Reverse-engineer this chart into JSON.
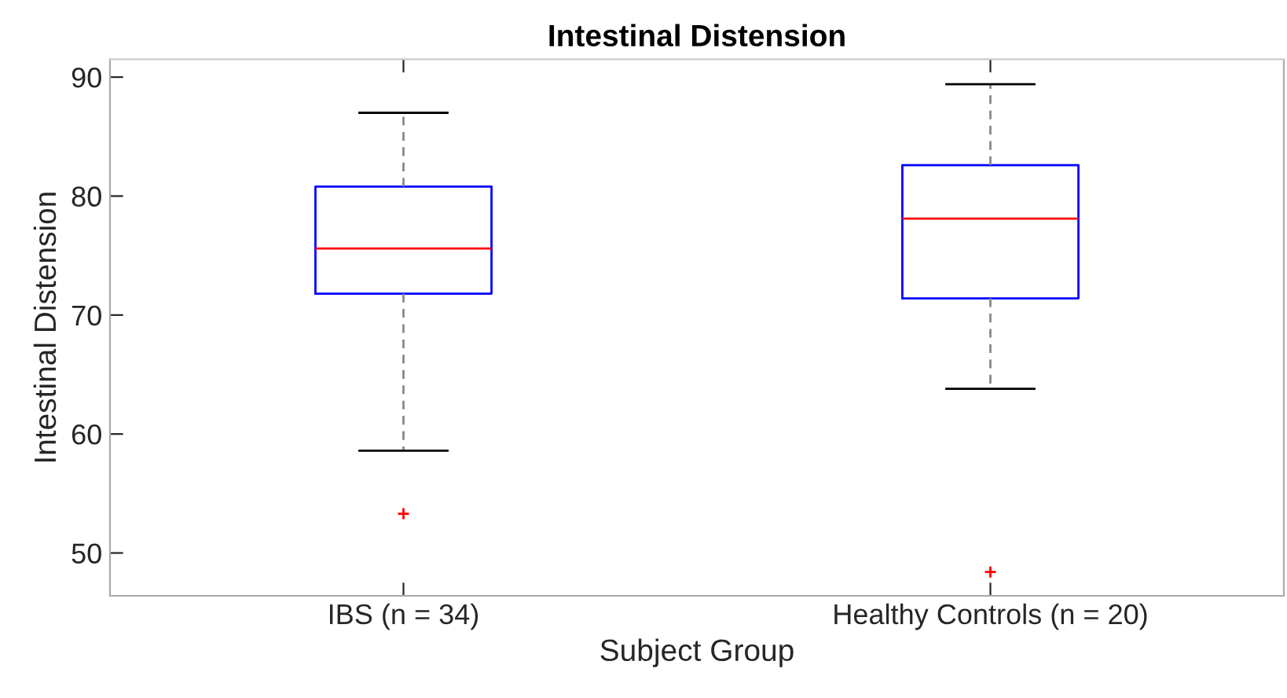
{
  "chart_data": {
    "type": "box",
    "title": "Intestinal Distension",
    "xlabel": "Subject Group",
    "ylabel": "Intestinal Distension",
    "categories": [
      "IBS (n = 34)",
      "Healthy Controls (n = 20)"
    ],
    "boxes": [
      {
        "low": 58.6,
        "q1": 71.8,
        "median": 75.6,
        "q3": 80.8,
        "high": 87.0,
        "outliers": [
          53.3
        ]
      },
      {
        "low": 63.8,
        "q1": 71.4,
        "median": 78.1,
        "q3": 82.6,
        "high": 89.4,
        "outliers": [
          48.4
        ]
      }
    ],
    "color": "#0000ff",
    "ylim": [
      46.4,
      91.5
    ],
    "yticks": [
      50,
      60,
      70,
      80,
      90
    ],
    "grid": false,
    "legend": false
  }
}
